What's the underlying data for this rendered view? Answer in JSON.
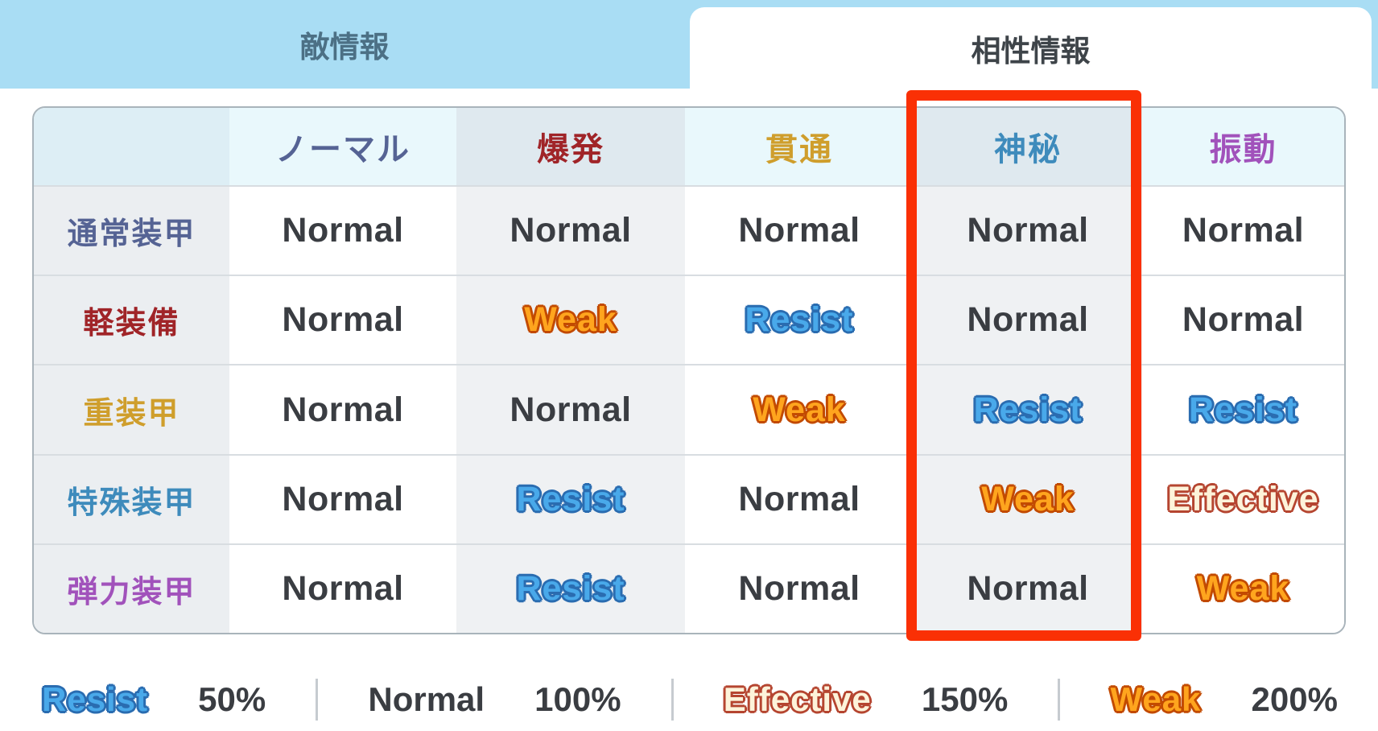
{
  "tabs": [
    {
      "label": "敵情報",
      "active": false
    },
    {
      "label": "相性情報",
      "active": true
    }
  ],
  "colors": {
    "tab_bar": "#a9ddf4",
    "highlight": "#fa3005",
    "weak": "#ffa51e",
    "resist": "#49a9ea",
    "effective": "#fdf3da"
  },
  "table": {
    "columns": [
      {
        "label": "ノーマル",
        "type": "normal",
        "color": "#556394"
      },
      {
        "label": "爆発",
        "type": "explosive",
        "color": "#a02428"
      },
      {
        "label": "貫通",
        "type": "piercing",
        "color": "#cf9e2c"
      },
      {
        "label": "神秘",
        "type": "mystic",
        "color": "#3e8bbc"
      },
      {
        "label": "振動",
        "type": "sonic",
        "color": "#a152bb"
      }
    ],
    "rows": [
      {
        "label": "通常装甲",
        "type": "normal-armor",
        "color": "#556394",
        "values": [
          "Normal",
          "Normal",
          "Normal",
          "Normal",
          "Normal"
        ]
      },
      {
        "label": "軽装備",
        "type": "light-armor",
        "color": "#a02428",
        "values": [
          "Normal",
          "Weak",
          "Resist",
          "Normal",
          "Normal"
        ]
      },
      {
        "label": "重装甲",
        "type": "heavy-armor",
        "color": "#cf9e2c",
        "values": [
          "Normal",
          "Normal",
          "Weak",
          "Resist",
          "Resist"
        ]
      },
      {
        "label": "特殊装甲",
        "type": "special-armor",
        "color": "#3e8bbc",
        "values": [
          "Normal",
          "Resist",
          "Normal",
          "Weak",
          "Effective"
        ]
      },
      {
        "label": "弾力装甲",
        "type": "elastic-armor",
        "color": "#a152bb",
        "values": [
          "Normal",
          "Resist",
          "Normal",
          "Normal",
          "Weak"
        ]
      }
    ],
    "highlighted_column": "神秘"
  },
  "legend": [
    {
      "label": "Resist",
      "value": "50%"
    },
    {
      "label": "Normal",
      "value": "100%"
    },
    {
      "label": "Effective",
      "value": "150%"
    },
    {
      "label": "Weak",
      "value": "200%"
    }
  ]
}
